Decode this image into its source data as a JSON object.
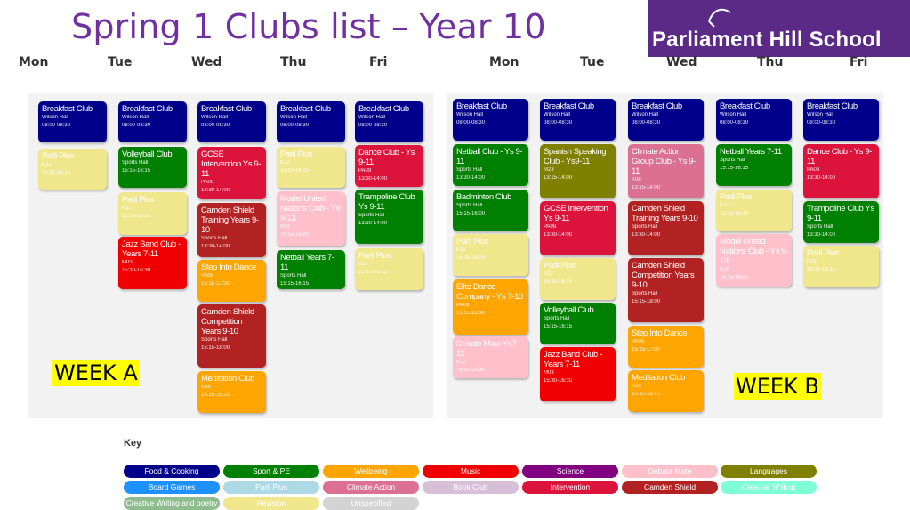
{
  "title": "Spring 1 Clubs list – Year 10",
  "logo": {
    "text": "Parliament Hill School"
  },
  "days": [
    "Mon",
    "Tue",
    "Wed",
    "Thu",
    "Fri"
  ],
  "colors": {
    "navy": "#00008b",
    "green": "#008000",
    "orange": "#ffa500",
    "red": "#f00000",
    "purple": "#800080",
    "pink": "#ffc0cb",
    "olive": "#808000",
    "blue": "#1e90ff",
    "lightblue": "#add8e6",
    "rose": "#db7093",
    "lavender": "#d8bfd8",
    "crimson": "#dc143c",
    "maroon": "#b22222",
    "mint": "#7fffd4",
    "sage": "#8fbc8f",
    "khaki": "#f0e68c",
    "grey": "#d3d3d3"
  },
  "weeks": [
    {
      "label": "WEEK A",
      "days": [
        [
          {
            "name": "Breakfast Club",
            "loc": "Wilson Hall",
            "time": "08:00-08:30",
            "color": "navy"
          },
          {
            "name": "Parli Plus",
            "loc": "K22",
            "time": "15:15-16:15",
            "color": "khaki"
          }
        ],
        [
          {
            "name": "Breakfast Club",
            "loc": "Wilson Hall",
            "time": "08:00-08:30",
            "color": "navy"
          },
          {
            "name": "Volleyball Club",
            "loc": "Sports Hall",
            "time": "15:15-16:15",
            "color": "green"
          },
          {
            "name": "Parli Plus",
            "loc": "K22",
            "time": "15:15-16:15",
            "color": "khaki"
          },
          {
            "name": "Jazz Band Club - Years 7-11",
            "loc": "M03",
            "time": "15:30-16:30",
            "color": "red"
          }
        ],
        [
          {
            "name": "Breakfast Club",
            "loc": "Wilson Hall",
            "time": "08:00-08:30",
            "color": "navy"
          },
          {
            "name": "GCSE Intervention Ys 9-11",
            "loc": "PA09",
            "time": "13:30-14:00",
            "color": "crimson"
          },
          {
            "name": "Camden Shield Training Years 9-10",
            "loc": "Sports Hall",
            "time": "13:30-14:00",
            "color": "maroon"
          },
          {
            "name": "Step Into Dance",
            "loc": "PA09",
            "time": "15:15-17:00",
            "color": "orange"
          },
          {
            "name": "Camden Shield Competition Years 9-10",
            "loc": "Sports Hall",
            "time": "15:15-18:00",
            "color": "maroon"
          },
          {
            "name": "Meditation Club",
            "loc": "K38",
            "time": "15:15-16:15",
            "color": "orange"
          }
        ],
        [
          {
            "name": "Breakfast Club",
            "loc": "Wilson Hall",
            "time": "08:00-08:30",
            "color": "navy"
          },
          {
            "name": "Parli Plus",
            "loc": "K22",
            "time": "15:15-16:15",
            "color": "khaki"
          },
          {
            "name": "Model United Nations Club - Ys 9-13",
            "loc": "K08",
            "time": "15:15-16:00",
            "color": "pink"
          },
          {
            "name": "Netball Years 7-11",
            "loc": "Sports Hall",
            "time": "15:15-16:15",
            "color": "green"
          }
        ],
        [
          {
            "name": "Breakfast Club",
            "loc": "Wilson Hall",
            "time": "08:00-08:30",
            "color": "navy"
          },
          {
            "name": "Dance Club - Ys 9-11",
            "loc": "PA09",
            "time": "13:30-14:00",
            "color": "crimson"
          },
          {
            "name": "Trampoline Club Ys 9-11",
            "loc": "Sports Hall",
            "time": "13:30-14:00",
            "color": "green"
          },
          {
            "name": "Parli Plus",
            "loc": "K22",
            "time": "15:15-16:15",
            "color": "khaki"
          }
        ]
      ]
    },
    {
      "label": "WEEK B",
      "days": [
        [
          {
            "name": "Breakfast Club",
            "loc": "Wilson Hall",
            "time": "08:00-08:30",
            "color": "navy"
          },
          {
            "name": "Netball Club - Ys 9-11",
            "loc": "Sports Hall",
            "time": "13:30-14:00",
            "color": "green"
          },
          {
            "name": "Badminton Club",
            "loc": "Sports Hall",
            "time": "15:15-16:00",
            "color": "green"
          },
          {
            "name": "Parli Plus",
            "loc": "K22",
            "time": "15:15-16:15",
            "color": "khaki"
          },
          {
            "name": "Elite Dance Company - Ys 7-10",
            "loc": "PA09",
            "time": "15:15-16:30",
            "color": "orange"
          },
          {
            "name": "Debate Mate Ys7-11",
            "loc": "K12",
            "time": "15:30-16:30",
            "color": "pink"
          }
        ],
        [
          {
            "name": "Breakfast Club",
            "loc": "Wilson Hall",
            "time": "08:00-08:30",
            "color": "navy"
          },
          {
            "name": "Spanish Speaking Club - Ys9-11",
            "loc": "M23",
            "time": "13:15-14:00",
            "color": "olive"
          },
          {
            "name": "GCSE Intervention Ys 9-11",
            "loc": "PA09",
            "time": "13:30-14:00",
            "color": "crimson"
          },
          {
            "name": "Parli Plus",
            "loc": "K22",
            "time": "15:15-16:15",
            "color": "khaki"
          },
          {
            "name": "Volleyball Club",
            "loc": "Sports Hall",
            "time": "15:15-16:15",
            "color": "green"
          },
          {
            "name": "Jazz Band Club - Years 7-11",
            "loc": "M03",
            "time": "15:30-16:30",
            "color": "red"
          }
        ],
        [
          {
            "name": "Breakfast Club",
            "loc": "Wilson Hall",
            "time": "08:00-08:30",
            "color": "navy"
          },
          {
            "name": "Climate Action Group Club - Ys 9-11",
            "loc": "K08",
            "time": "13:15-14:00",
            "color": "rose"
          },
          {
            "name": "Camden Shield Training Years 9-10",
            "loc": "Sports Hall",
            "time": "13:30-14:00",
            "color": "maroon"
          },
          {
            "name": "Camden Shield Competition Years 9-10",
            "loc": "Sports Hall",
            "time": "15:15-18:00",
            "color": "maroon"
          },
          {
            "name": "Step Into Dance",
            "loc": "PA09",
            "time": "15:15-17:00",
            "color": "orange"
          },
          {
            "name": "Meditation Club",
            "loc": "K38",
            "time": "15:15-16:15",
            "color": "orange"
          }
        ],
        [
          {
            "name": "Breakfast Club",
            "loc": "Wilson Hall",
            "time": "08:00-08:30",
            "color": "navy"
          },
          {
            "name": "Netball Years 7-11",
            "loc": "Sports Hall",
            "time": "15:15-16:15",
            "color": "green"
          },
          {
            "name": "Parli Plus",
            "loc": "K22",
            "time": "15:15-16:15",
            "color": "khaki"
          },
          {
            "name": "Model United Nations Club - Ys 9-13",
            "loc": "K08",
            "time": "15:15-16:00",
            "color": "pink"
          }
        ],
        [
          {
            "name": "Breakfast Club",
            "loc": "Wilson Hall",
            "time": "08:00-08:30",
            "color": "navy"
          },
          {
            "name": "Dance Club - Ys 9-11",
            "loc": "PA09",
            "time": "13:30-14:00",
            "color": "crimson"
          },
          {
            "name": "Trampoline Club Ys 9-11",
            "loc": "Sports Hall",
            "time": "13:30-14:00",
            "color": "green"
          },
          {
            "name": "Parli Plus",
            "loc": "K22",
            "time": "15:15-16:15",
            "color": "khaki"
          }
        ]
      ]
    }
  ],
  "key": {
    "title": "Key",
    "items": [
      {
        "label": "Food & Cooking",
        "color": "navy"
      },
      {
        "label": "Sport & PE",
        "color": "green"
      },
      {
        "label": "Wellbeing",
        "color": "orange"
      },
      {
        "label": "Music",
        "color": "red"
      },
      {
        "label": "Science",
        "color": "purple"
      },
      {
        "label": "Debate Mate",
        "color": "pink"
      },
      {
        "label": "Languages",
        "color": "olive"
      },
      {
        "label": "Board Games",
        "color": "blue"
      },
      {
        "label": "Parli Plus",
        "color": "lightblue"
      },
      {
        "label": "Climate Action",
        "color": "rose"
      },
      {
        "label": "Book Club",
        "color": "lavender"
      },
      {
        "label": "Intervention",
        "color": "crimson"
      },
      {
        "label": "Camden Shield",
        "color": "maroon"
      },
      {
        "label": "Creative Writing",
        "color": "mint"
      },
      {
        "label": "Creative Writing and poetry",
        "color": "sage"
      },
      {
        "label": "Revision",
        "color": "khaki"
      },
      {
        "label": "Unspecified",
        "color": "grey"
      }
    ]
  }
}
